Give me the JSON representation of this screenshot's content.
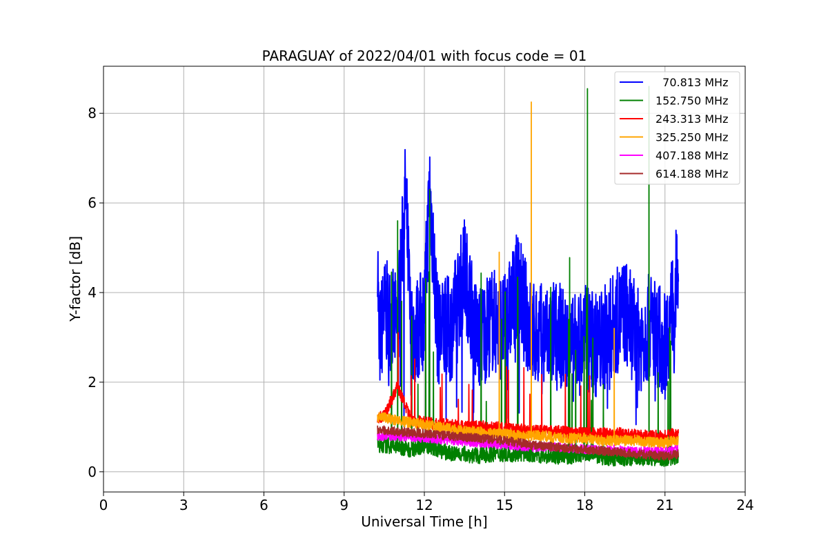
{
  "chart_data": {
    "type": "line",
    "title": "PARAGUAY of 2022/04/01 with focus code = 01",
    "xlabel": "Universal Time [h]",
    "ylabel": "Y-factor [dB]",
    "xlim": [
      0,
      24
    ],
    "ylim": [
      -0.45,
      9.05
    ],
    "xticks": [
      0,
      3,
      6,
      9,
      12,
      15,
      18,
      21,
      24
    ],
    "yticks": [
      0,
      2,
      4,
      6,
      8
    ],
    "grid": true,
    "legend_position": "top-right",
    "time_range": [
      10.25,
      21.5
    ],
    "series": [
      {
        "name": "  70.813 MHz",
        "color": "#0000ff",
        "x": [
          10.25,
          10.3,
          10.5,
          11.0,
          11.3,
          11.5,
          12.0,
          12.2,
          12.5,
          13.0,
          13.5,
          14.0,
          14.5,
          15.0,
          15.5,
          16.0,
          16.5,
          17.0,
          17.5,
          18.0,
          18.5,
          19.0,
          19.5,
          20.0,
          20.5,
          21.0,
          21.5
        ],
        "y": [
          5.1,
          2.8,
          3.6,
          3.2,
          6.3,
          2.9,
          3.5,
          6.4,
          3.1,
          3.2,
          4.5,
          2.9,
          3.4,
          3.2,
          4.2,
          3.1,
          3.0,
          3.1,
          2.7,
          3.0,
          2.8,
          3.2,
          3.6,
          2.9,
          3.3,
          2.8,
          4.5
        ]
      },
      {
        "name": "152.750 MHz",
        "color": "#008000",
        "x": [
          10.25,
          10.5,
          11.0,
          11.5,
          12.0,
          12.2,
          12.5,
          13.0,
          13.5,
          14.0,
          14.5,
          15.0,
          15.5,
          16.0,
          16.5,
          17.0,
          17.5,
          18.0,
          18.1,
          18.5,
          19.0,
          19.5,
          20.0,
          20.4,
          20.5,
          21.0,
          21.5
        ],
        "y": [
          0.6,
          0.6,
          5.6,
          0.5,
          0.6,
          6.3,
          0.5,
          0.4,
          0.4,
          0.35,
          0.4,
          0.4,
          0.4,
          0.4,
          0.35,
          0.35,
          0.35,
          0.4,
          8.55,
          0.35,
          0.3,
          0.3,
          0.3,
          8.6,
          0.3,
          0.3,
          0.35
        ]
      },
      {
        "name": "243.313 MHz",
        "color": "#ff0000",
        "x": [
          10.25,
          10.5,
          11.0,
          11.5,
          12.0,
          12.5,
          13.0,
          13.5,
          14.0,
          14.5,
          15.0,
          15.5,
          16.0,
          16.5,
          17.0,
          17.5,
          18.0,
          18.5,
          19.0,
          19.5,
          20.0,
          20.5,
          21.0,
          21.5
        ],
        "y": [
          1.2,
          1.25,
          1.9,
          1.15,
          1.1,
          1.05,
          1.05,
          1.0,
          1.0,
          1.0,
          0.95,
          0.95,
          0.9,
          0.9,
          0.9,
          0.85,
          0.85,
          0.85,
          0.85,
          0.85,
          0.8,
          0.8,
          0.8,
          0.85
        ]
      },
      {
        "name": "325.250 MHz",
        "color": "#ffa500",
        "x": [
          10.25,
          10.5,
          11.0,
          11.5,
          12.0,
          12.5,
          13.0,
          13.5,
          14.0,
          14.5,
          14.8,
          15.0,
          15.5,
          16.0,
          16.1,
          16.5,
          17.0,
          17.5,
          18.0,
          18.5,
          19.0,
          19.1,
          19.5,
          20.0,
          20.5,
          21.0,
          21.5
        ],
        "y": [
          1.2,
          1.2,
          1.15,
          1.1,
          1.05,
          1.0,
          0.95,
          0.9,
          0.9,
          0.85,
          4.9,
          0.85,
          0.8,
          8.25,
          0.8,
          0.8,
          0.75,
          0.75,
          0.75,
          0.7,
          0.7,
          3.2,
          0.7,
          0.7,
          0.65,
          0.65,
          0.7
        ]
      },
      {
        "name": "407.188 MHz",
        "color": "#ff00ff",
        "x": [
          10.25,
          11.0,
          12.0,
          13.0,
          14.0,
          15.0,
          16.0,
          17.0,
          18.0,
          19.0,
          20.0,
          21.0,
          21.5
        ],
        "y": [
          0.8,
          0.8,
          0.75,
          0.7,
          0.65,
          0.6,
          0.55,
          0.55,
          0.5,
          0.5,
          0.45,
          0.45,
          0.5
        ]
      },
      {
        "name": "614.188 MHz",
        "color": "#a52a2a",
        "x": [
          10.25,
          11.0,
          12.0,
          13.0,
          14.0,
          15.0,
          16.0,
          17.0,
          18.0,
          19.0,
          20.0,
          21.0,
          21.5
        ],
        "y": [
          0.95,
          0.9,
          0.85,
          0.8,
          0.75,
          0.7,
          0.6,
          0.55,
          0.5,
          0.45,
          0.4,
          0.35,
          0.4
        ]
      }
    ]
  }
}
